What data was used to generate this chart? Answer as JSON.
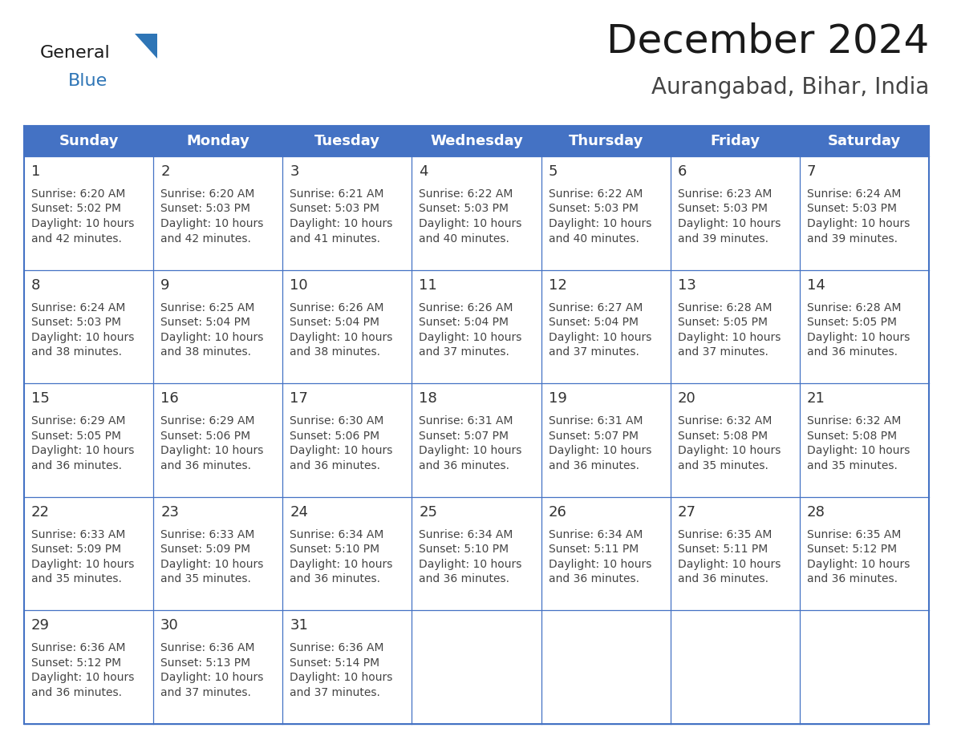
{
  "title": "December 2024",
  "subtitle": "Aurangabad, Bihar, India",
  "header_bg": "#4472C4",
  "header_text_color": "#FFFFFF",
  "cell_text_color": "#444444",
  "day_number_color": "#333333",
  "grid_color": "#4472C4",
  "background_color": "#FFFFFF",
  "days_of_week": [
    "Sunday",
    "Monday",
    "Tuesday",
    "Wednesday",
    "Thursday",
    "Friday",
    "Saturday"
  ],
  "weeks": [
    [
      {
        "day": "1",
        "sunrise": "6:20 AM",
        "sunset": "5:02 PM",
        "daylight_mins": "42"
      },
      {
        "day": "2",
        "sunrise": "6:20 AM",
        "sunset": "5:03 PM",
        "daylight_mins": "42"
      },
      {
        "day": "3",
        "sunrise": "6:21 AM",
        "sunset": "5:03 PM",
        "daylight_mins": "41"
      },
      {
        "day": "4",
        "sunrise": "6:22 AM",
        "sunset": "5:03 PM",
        "daylight_mins": "40"
      },
      {
        "day": "5",
        "sunrise": "6:22 AM",
        "sunset": "5:03 PM",
        "daylight_mins": "40"
      },
      {
        "day": "6",
        "sunrise": "6:23 AM",
        "sunset": "5:03 PM",
        "daylight_mins": "39"
      },
      {
        "day": "7",
        "sunrise": "6:24 AM",
        "sunset": "5:03 PM",
        "daylight_mins": "39"
      }
    ],
    [
      {
        "day": "8",
        "sunrise": "6:24 AM",
        "sunset": "5:03 PM",
        "daylight_mins": "38"
      },
      {
        "day": "9",
        "sunrise": "6:25 AM",
        "sunset": "5:04 PM",
        "daylight_mins": "38"
      },
      {
        "day": "10",
        "sunrise": "6:26 AM",
        "sunset": "5:04 PM",
        "daylight_mins": "38"
      },
      {
        "day": "11",
        "sunrise": "6:26 AM",
        "sunset": "5:04 PM",
        "daylight_mins": "37"
      },
      {
        "day": "12",
        "sunrise": "6:27 AM",
        "sunset": "5:04 PM",
        "daylight_mins": "37"
      },
      {
        "day": "13",
        "sunrise": "6:28 AM",
        "sunset": "5:05 PM",
        "daylight_mins": "37"
      },
      {
        "day": "14",
        "sunrise": "6:28 AM",
        "sunset": "5:05 PM",
        "daylight_mins": "36"
      }
    ],
    [
      {
        "day": "15",
        "sunrise": "6:29 AM",
        "sunset": "5:05 PM",
        "daylight_mins": "36"
      },
      {
        "day": "16",
        "sunrise": "6:29 AM",
        "sunset": "5:06 PM",
        "daylight_mins": "36"
      },
      {
        "day": "17",
        "sunrise": "6:30 AM",
        "sunset": "5:06 PM",
        "daylight_mins": "36"
      },
      {
        "day": "18",
        "sunrise": "6:31 AM",
        "sunset": "5:07 PM",
        "daylight_mins": "36"
      },
      {
        "day": "19",
        "sunrise": "6:31 AM",
        "sunset": "5:07 PM",
        "daylight_mins": "36"
      },
      {
        "day": "20",
        "sunrise": "6:32 AM",
        "sunset": "5:08 PM",
        "daylight_mins": "35"
      },
      {
        "day": "21",
        "sunrise": "6:32 AM",
        "sunset": "5:08 PM",
        "daylight_mins": "35"
      }
    ],
    [
      {
        "day": "22",
        "sunrise": "6:33 AM",
        "sunset": "5:09 PM",
        "daylight_mins": "35"
      },
      {
        "day": "23",
        "sunrise": "6:33 AM",
        "sunset": "5:09 PM",
        "daylight_mins": "35"
      },
      {
        "day": "24",
        "sunrise": "6:34 AM",
        "sunset": "5:10 PM",
        "daylight_mins": "36"
      },
      {
        "day": "25",
        "sunrise": "6:34 AM",
        "sunset": "5:10 PM",
        "daylight_mins": "36"
      },
      {
        "day": "26",
        "sunrise": "6:34 AM",
        "sunset": "5:11 PM",
        "daylight_mins": "36"
      },
      {
        "day": "27",
        "sunrise": "6:35 AM",
        "sunset": "5:11 PM",
        "daylight_mins": "36"
      },
      {
        "day": "28",
        "sunrise": "6:35 AM",
        "sunset": "5:12 PM",
        "daylight_mins": "36"
      }
    ],
    [
      {
        "day": "29",
        "sunrise": "6:36 AM",
        "sunset": "5:12 PM",
        "daylight_mins": "36"
      },
      {
        "day": "30",
        "sunrise": "6:36 AM",
        "sunset": "5:13 PM",
        "daylight_mins": "37"
      },
      {
        "day": "31",
        "sunrise": "6:36 AM",
        "sunset": "5:14 PM",
        "daylight_mins": "37"
      },
      null,
      null,
      null,
      null
    ]
  ],
  "logo_general_color": "#1a1a1a",
  "logo_blue_color": "#2E75B6",
  "logo_triangle_color": "#2E75B6",
  "title_fontsize": 36,
  "subtitle_fontsize": 20,
  "header_fontsize": 13,
  "day_num_fontsize": 13,
  "cell_fontsize": 10
}
